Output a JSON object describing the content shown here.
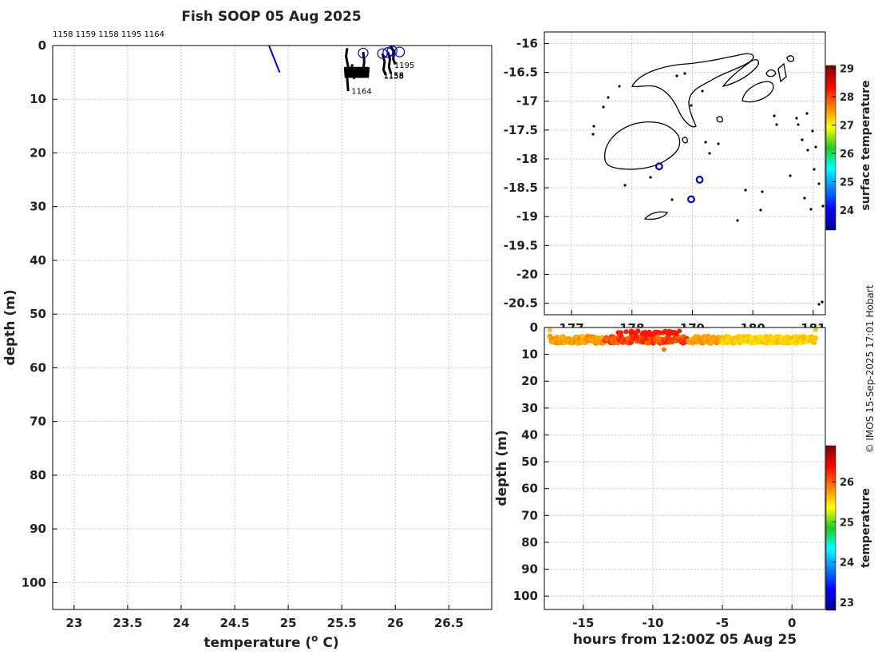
{
  "title": "Fish SOOP 05 Aug 2025",
  "copyright": "© IMOS 15-Sep-2025 17:01 Hobart",
  "chart_data": [
    {
      "id": "profile",
      "type": "line",
      "xlabel": "temperature (",
      "xlabel_sup": "o",
      "xlabel_tail": " C)",
      "ylabel": "depth (m)",
      "xlim": [
        22.8,
        26.9
      ],
      "ylim": [
        0,
        105
      ],
      "xticks": [
        23,
        23.5,
        24,
        24.5,
        25,
        25.5,
        26,
        26.5
      ],
      "xtick_labels": [
        "23",
        "23.5",
        "24",
        "24.5",
        "25",
        "25.5",
        "26",
        "26.5"
      ],
      "yticks": [
        0,
        10,
        20,
        30,
        40,
        50,
        60,
        70,
        80,
        90,
        100
      ],
      "ytick_labels": [
        "0",
        "10",
        "20",
        "30",
        "40",
        "50",
        "60",
        "70",
        "80",
        "90",
        "100"
      ],
      "top_labels": "1158 1159 1158 1195 1164",
      "blue_line": [
        [
          24.82,
          0
        ],
        [
          24.92,
          5
        ]
      ],
      "profiles": [
        {
          "id": "1164",
          "points": [
            [
              25.55,
              0.5
            ],
            [
              25.54,
              2
            ],
            [
              25.56,
              4
            ],
            [
              25.55,
              6
            ],
            [
              25.56,
              8.5
            ]
          ]
        },
        {
          "id": "1164b",
          "points": [
            [
              25.6,
              3.5
            ],
            [
              25.58,
              5
            ],
            [
              25.62,
              6.2
            ]
          ]
        },
        {
          "id": "1159",
          "points": [
            [
              25.7,
              1.2
            ],
            [
              25.71,
              3
            ],
            [
              25.7,
              4.5
            ],
            [
              25.72,
              5.5
            ]
          ]
        },
        {
          "id": "1158",
          "points": [
            [
              25.88,
              1.5
            ],
            [
              25.9,
              3
            ],
            [
              25.89,
              4.5
            ],
            [
              25.91,
              5.5
            ]
          ]
        },
        {
          "id": "1158b",
          "points": [
            [
              25.93,
              1.2
            ],
            [
              25.95,
              2.5
            ],
            [
              25.94,
              4
            ],
            [
              25.96,
              5.2
            ]
          ]
        },
        {
          "id": "1195",
          "points": [
            [
              25.96,
              0.2
            ],
            [
              25.99,
              1.2
            ],
            [
              25.98,
              2.5
            ],
            [
              26.0,
              3.5
            ]
          ]
        }
      ],
      "band": {
        "x0": 25.53,
        "x1": 25.75,
        "d0": 4.0,
        "d1": 6.0
      },
      "surface_markers": [
        {
          "x": 25.7,
          "d": 1.4
        },
        {
          "x": 25.88,
          "d": 1.5
        },
        {
          "x": 25.93,
          "d": 1.3
        },
        {
          "x": 25.97,
          "d": 1.0
        },
        {
          "x": 26.04,
          "d": 1.2
        }
      ],
      "annotations": [
        {
          "text": "1195",
          "x": 25.99,
          "d": 3.6
        },
        {
          "text": "1158",
          "x": 25.89,
          "d": 5.4
        },
        {
          "text": "1158",
          "x": 25.89,
          "d": 5.6
        },
        {
          "text": "1164",
          "x": 25.59,
          "d": 8.4
        }
      ]
    },
    {
      "id": "map",
      "type": "scatter",
      "xlim": [
        176.55,
        181.2
      ],
      "ylim": [
        -20.7,
        -15.8
      ],
      "xticks": [
        177,
        178,
        179,
        180,
        181
      ],
      "xtick_labels": [
        "177",
        "178",
        "179",
        "180",
        "181"
      ],
      "yticks": [
        -16,
        -16.5,
        -17,
        -17.5,
        -18,
        -18.5,
        -19,
        -19.5,
        -20,
        -20.5
      ],
      "ytick_labels": [
        "-16",
        "-16.5",
        "-17",
        "-17.5",
        "-18",
        "-18.5",
        "-19",
        "-19.5",
        "-20",
        "-20.5"
      ],
      "stations": [
        {
          "lon": 178.45,
          "lat": -18.13
        },
        {
          "lon": 179.12,
          "lat": -18.36
        },
        {
          "lon": 178.98,
          "lat": -18.7
        }
      ],
      "colorbar": {
        "label": "surface temperature",
        "min": 23.3,
        "max": 29.1,
        "ticks": [
          24,
          25,
          26,
          27,
          28,
          29
        ],
        "tick_labels": [
          "24",
          "25",
          "26",
          "27",
          "28",
          "29"
        ]
      }
    },
    {
      "id": "timeseries",
      "type": "scatter",
      "xlabel": "hours from 12:00Z 05 Aug 25",
      "ylabel": "depth (m)",
      "xlim": [
        -17.8,
        2.4
      ],
      "ylim": [
        0,
        105
      ],
      "xticks": [
        -15,
        -10,
        -5,
        0
      ],
      "xtick_labels": [
        "-15",
        "-10",
        "-5",
        "0"
      ],
      "yticks": [
        0,
        10,
        20,
        30,
        40,
        50,
        60,
        70,
        80,
        90,
        100
      ],
      "ytick_labels": [
        "0",
        "10",
        "20",
        "30",
        "40",
        "50",
        "60",
        "70",
        "80",
        "90",
        "100"
      ],
      "t_range": [
        -17.4,
        1.7
      ],
      "depth_mean": 4.6,
      "colorbar": {
        "label": "temperature",
        "min": 22.8,
        "max": 26.9,
        "ticks": [
          23,
          24,
          25,
          26
        ],
        "tick_labels": [
          "23",
          "24",
          "25",
          "26"
        ]
      }
    }
  ],
  "colors": {
    "profile_line": "#000000",
    "blue": "#0000dd",
    "coast": "#000000"
  }
}
